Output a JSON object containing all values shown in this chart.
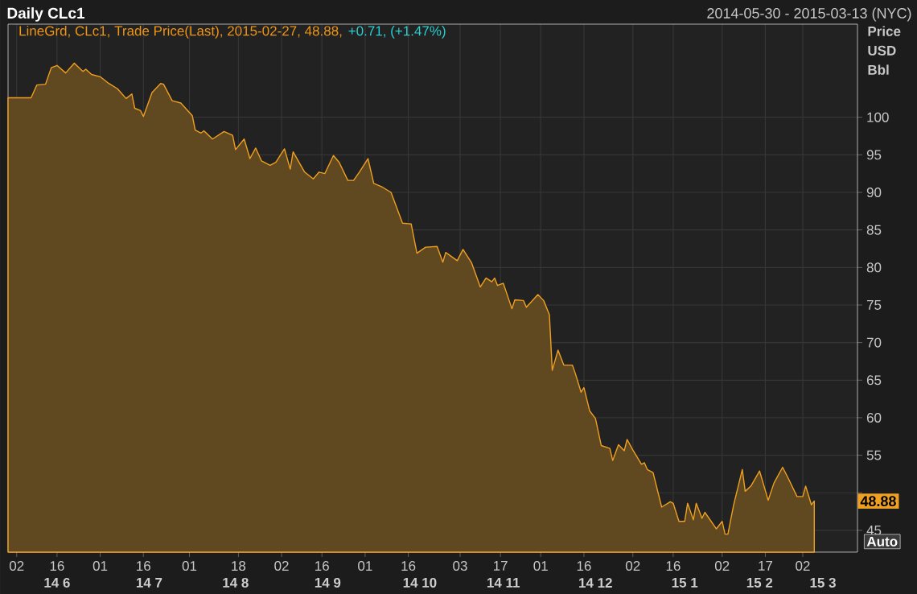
{
  "chart_data": {
    "type": "area",
    "title": "Daily CLc1",
    "subtitle": "2014-05-30 - 2015-03-13 (NYC)",
    "ylabel": "Price USD Bbl",
    "annotations": [
      "LineGrd, CLc1, Trade Price(Last), 2015-02-27, 48.88,",
      "+0.71, (+1.47%)",
      "Auto",
      {
        "text": "48.88",
        "y": 48.88
      }
    ],
    "x": [
      "2014-05-30",
      "2014-06-07",
      "2014-06-09",
      "2014-06-12",
      "2014-06-14",
      "2014-06-16",
      "2014-06-19",
      "2014-06-22",
      "2014-06-25",
      "2014-06-26",
      "2014-06-28",
      "2014-07-01",
      "2014-07-04",
      "2014-07-07",
      "2014-07-10",
      "2014-07-12",
      "2014-07-13",
      "2014-07-15",
      "2014-07-16",
      "2014-07-19",
      "2014-07-22",
      "2014-07-23",
      "2014-07-26",
      "2014-07-29",
      "2014-08-02",
      "2014-08-03",
      "2014-08-05",
      "2014-08-06",
      "2014-08-09",
      "2014-08-13",
      "2014-08-16",
      "2014-08-17",
      "2014-08-20",
      "2014-08-22",
      "2014-08-24",
      "2014-08-26",
      "2014-08-29",
      "2014-08-31",
      "2014-09-03",
      "2014-09-05",
      "2014-09-06",
      "2014-09-10",
      "2014-09-13",
      "2014-09-15",
      "2014-09-17",
      "2014-09-20",
      "2014-09-22",
      "2014-09-25",
      "2014-09-27",
      "2014-09-29",
      "2014-10-02",
      "2014-10-04",
      "2014-10-07",
      "2014-10-10",
      "2014-10-14",
      "2014-10-17",
      "2014-10-19",
      "2014-10-22",
      "2014-10-26",
      "2014-10-28",
      "2014-10-29",
      "2014-11-02",
      "2014-11-04",
      "2014-11-07",
      "2014-11-10",
      "2014-11-12",
      "2014-11-14",
      "2014-11-15",
      "2014-11-16",
      "2014-11-18",
      "2014-11-21",
      "2014-11-22",
      "2014-11-25",
      "2014-11-26",
      "2014-11-30",
      "2014-12-02",
      "2014-12-04",
      "2014-12-05",
      "2014-12-07",
      "2014-12-09",
      "2014-12-12",
      "2014-12-13",
      "2014-12-15",
      "2014-12-16",
      "2014-12-18",
      "2014-12-20",
      "2014-12-22",
      "2014-12-25",
      "2014-12-26",
      "2014-12-28",
      "2014-12-30",
      "2014-12-31",
      "2015-01-02",
      "2015-01-05",
      "2015-01-06",
      "2015-01-07",
      "2015-01-09",
      "2015-01-12",
      "2015-01-15",
      "2015-01-16",
      "2015-01-18",
      "2015-01-20",
      "2015-01-21",
      "2015-01-23",
      "2015-01-24",
      "2015-01-26",
      "2015-01-27",
      "2015-01-31",
      "2015-02-02",
      "2015-02-03",
      "2015-02-04",
      "2015-02-06",
      "2015-02-09",
      "2015-02-10",
      "2015-02-12",
      "2015-02-15",
      "2015-02-18",
      "2015-02-20",
      "2015-02-23",
      "2015-02-25",
      "2015-02-28",
      "2015-03-02",
      "2015-03-03",
      "2015-03-05",
      "2015-03-06"
    ],
    "series": [
      {
        "color": "#f0a020",
        "values": [
          102.6,
          102.6,
          104.3,
          104.4,
          106.6,
          106.9,
          105.9,
          107.2,
          106.1,
          106.4,
          105.7,
          105.4,
          104.5,
          103.8,
          102.5,
          103.1,
          101.2,
          100.9,
          100.1,
          103.3,
          104.5,
          104.4,
          102.2,
          101.9,
          100.2,
          98.3,
          97.9,
          98.2,
          97.1,
          98.1,
          97.6,
          95.7,
          97.1,
          94.5,
          95.9,
          94.2,
          93.6,
          94.0,
          95.8,
          93.1,
          95.4,
          92.7,
          91.8,
          92.7,
          92.5,
          94.9,
          94.0,
          91.6,
          91.6,
          92.7,
          94.5,
          91.2,
          90.7,
          90.0,
          85.9,
          85.8,
          81.9,
          82.7,
          82.8,
          80.7,
          82.0,
          80.9,
          82.4,
          80.6,
          77.4,
          78.6,
          78.1,
          78.6,
          77.6,
          77.9,
          74.5,
          75.7,
          75.6,
          74.7,
          76.4,
          75.6,
          73.7,
          66.3,
          69.0,
          67.0,
          67.0,
          65.9,
          63.4,
          64.0,
          60.9,
          59.9,
          56.3,
          55.9,
          54.3,
          56.4,
          55.6,
          57.1,
          55.7,
          53.8,
          54.0,
          53.1,
          52.7,
          48.1,
          48.8,
          48.6,
          46.2,
          46.2,
          48.6,
          46.4,
          48.6,
          46.6,
          47.4,
          45.2,
          46.2,
          44.5,
          44.5,
          48.4,
          53.1,
          50.2,
          50.9,
          52.9,
          49.0,
          51.3,
          53.4,
          51.9,
          49.5,
          49.5,
          50.9,
          48.4,
          48.9
        ]
      }
    ],
    "xlim": [
      "2014-05-30",
      "2015-03-21"
    ],
    "xticks": [
      {
        "value": "2014-06-02",
        "label": "02"
      },
      {
        "value": "2014-06-16",
        "label": "16"
      },
      {
        "value": "2014-07-01",
        "label": "01"
      },
      {
        "value": "2014-07-16",
        "label": "16"
      },
      {
        "value": "2014-08-01",
        "label": "01"
      },
      {
        "value": "2014-08-18",
        "label": "18"
      },
      {
        "value": "2014-09-02",
        "label": "02"
      },
      {
        "value": "2014-09-16",
        "label": "16"
      },
      {
        "value": "2014-10-01",
        "label": "01"
      },
      {
        "value": "2014-10-16",
        "label": "16"
      },
      {
        "value": "2014-11-03",
        "label": "03"
      },
      {
        "value": "2014-11-17",
        "label": "17"
      },
      {
        "value": "2014-12-01",
        "label": "01"
      },
      {
        "value": "2014-12-16",
        "label": "16"
      },
      {
        "value": "2015-01-02",
        "label": "02"
      },
      {
        "value": "2015-01-16",
        "label": "16"
      },
      {
        "value": "2015-02-02",
        "label": "02"
      },
      {
        "value": "2015-02-17",
        "label": "17"
      },
      {
        "value": "2015-03-02",
        "label": "02"
      }
    ],
    "x2lim": [
      "2014-05-30",
      "2015-03-21"
    ],
    "x2ticks": [
      {
        "value": "2014-06-16",
        "label": "14 6"
      },
      {
        "value": "2014-07-18",
        "label": "14 7"
      },
      {
        "value": "2014-08-17",
        "label": "14 8"
      },
      {
        "value": "2014-09-18",
        "label": "14 9"
      },
      {
        "value": "2014-10-20",
        "label": "14 10"
      },
      {
        "value": "2014-11-18",
        "label": "14 11"
      },
      {
        "value": "2014-12-20",
        "label": "14 12"
      },
      {
        "value": "2015-01-20",
        "label": "15 1"
      },
      {
        "value": "2015-02-15",
        "label": "15 2"
      },
      {
        "value": "2015-03-09",
        "label": "15 3"
      }
    ],
    "ylim": [
      42.1,
      112.4
    ],
    "yticks": [
      45,
      {
        "value": 50,
        "label": null
      },
      55,
      60,
      65,
      70,
      75,
      80,
      85,
      90,
      95,
      100
    ],
    "grid": true
  }
}
